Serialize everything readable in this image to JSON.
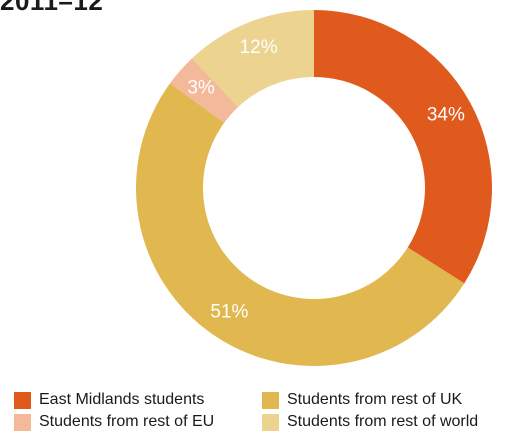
{
  "chart_data": {
    "type": "pie",
    "title": "2011–12",
    "categories": [
      "East Midlands students",
      "Students from rest of UK",
      "Students from rest of EU",
      "Students from rest of world"
    ],
    "values": [
      34,
      51,
      3,
      12
    ],
    "labels": [
      "34%",
      "51%",
      "3%",
      "12%"
    ],
    "colors": [
      "#e05a1e",
      "#e0b84f",
      "#f4b89a",
      "#ecd38f"
    ],
    "donut": true,
    "legend_position": "bottom"
  }
}
